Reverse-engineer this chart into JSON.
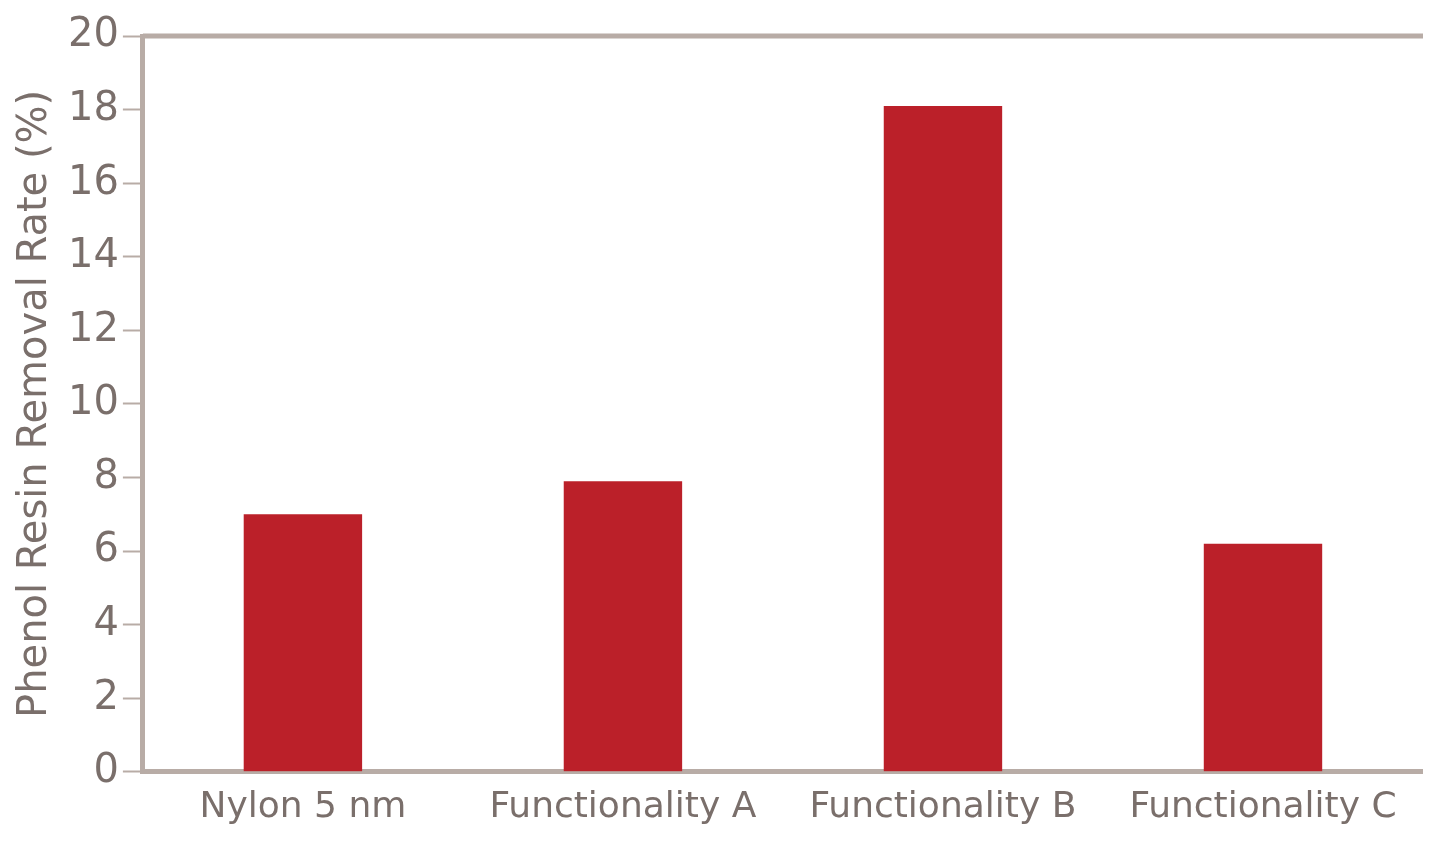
{
  "chart_data": {
    "type": "bar",
    "ylabel": "Phenol Resin Removal Rate (%)",
    "categories": [
      "Nylon 5 nm",
      "Functionality A",
      "Functionality B",
      "Functionality C"
    ],
    "values": [
      7.0,
      7.9,
      18.1,
      6.2
    ],
    "color": "#bb2029",
    "ylim": [
      0,
      20
    ],
    "yticks": [
      0,
      2,
      4,
      6,
      8,
      10,
      12,
      14,
      16,
      18,
      20
    ],
    "grid": false
  }
}
